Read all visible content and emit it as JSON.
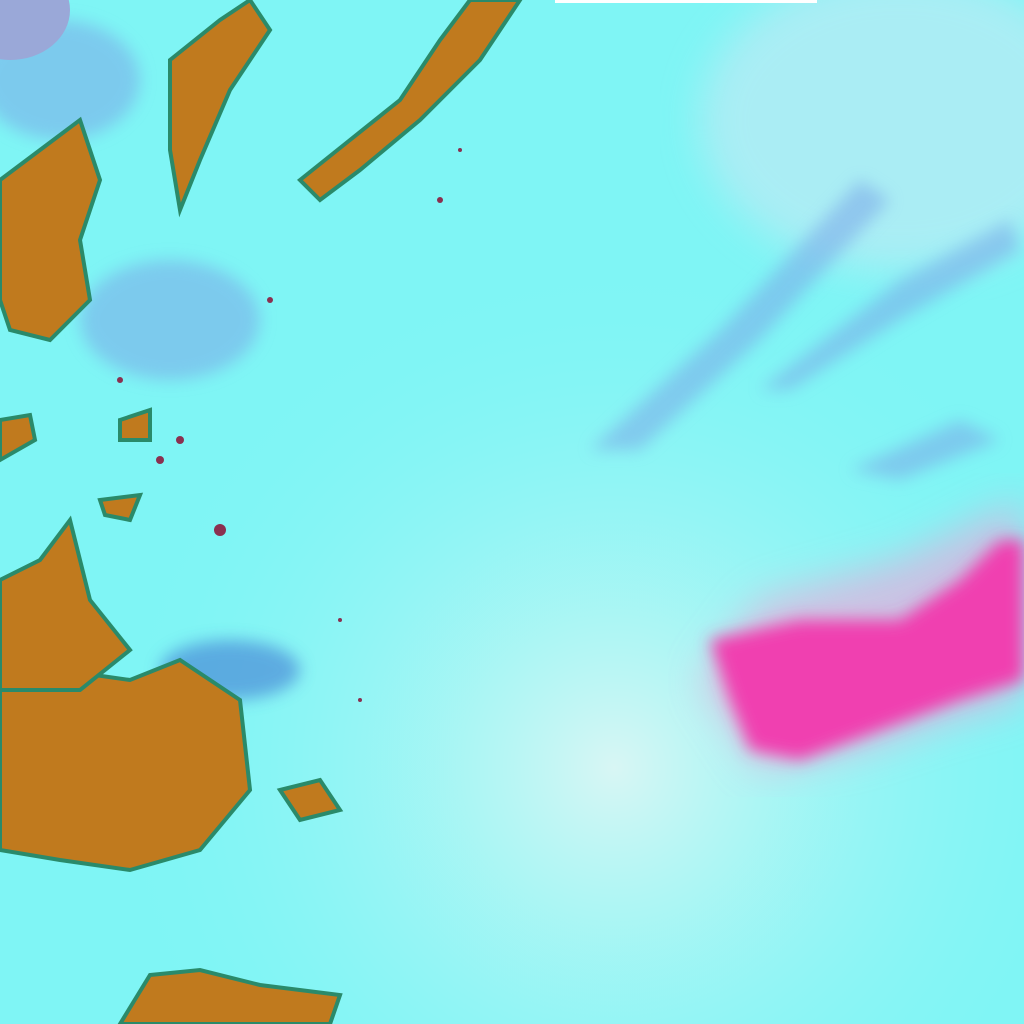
{
  "image": {
    "kind": "false-color satellite imagery",
    "colors": {
      "background": "#7ff5f5",
      "haze": "#b8f4f2",
      "land": "#c07a1e",
      "land_dark": "#8a6a20",
      "vegetation_edge": "#2a8a6a",
      "cloud_blue": "#7aa8e8",
      "plume": "#f040b0",
      "plume_light": "#f5a0d8",
      "top_bar": "#ffffff"
    }
  }
}
